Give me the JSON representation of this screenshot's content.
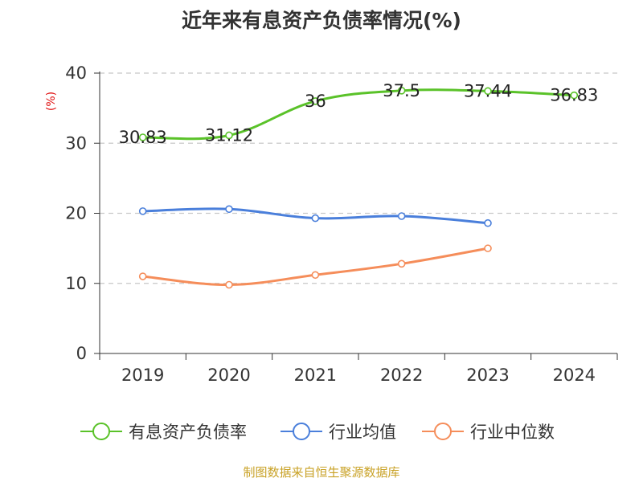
{
  "chart_data": {
    "type": "line",
    "title": "近年来有息资产负债率情况(%)",
    "ylabel": "(%)",
    "categories": [
      "2019",
      "2020",
      "2021",
      "2022",
      "2023",
      "2024"
    ],
    "ylim": [
      0,
      40
    ],
    "yticks": [
      "0",
      "10",
      "20",
      "30",
      "40"
    ],
    "grid": true,
    "legend_position": "bottom",
    "series": [
      {
        "name": "有息资产负债率",
        "color": "#5ac229",
        "values": [
          30.83,
          31.12,
          36,
          37.5,
          37.44,
          36.83
        ],
        "labels": [
          "30.83",
          "31.12",
          "36",
          "37.5",
          "37.44",
          "36.83"
        ]
      },
      {
        "name": "行业均值",
        "color": "#4a7fdb",
        "values": [
          20.3,
          20.6,
          19.3,
          19.6,
          18.6,
          null
        ]
      },
      {
        "name": "行业中位数",
        "color": "#f58d5a",
        "values": [
          11.0,
          9.8,
          11.2,
          12.8,
          15.0,
          null
        ]
      }
    ],
    "source": "制图数据来自恒生聚源数据库"
  }
}
